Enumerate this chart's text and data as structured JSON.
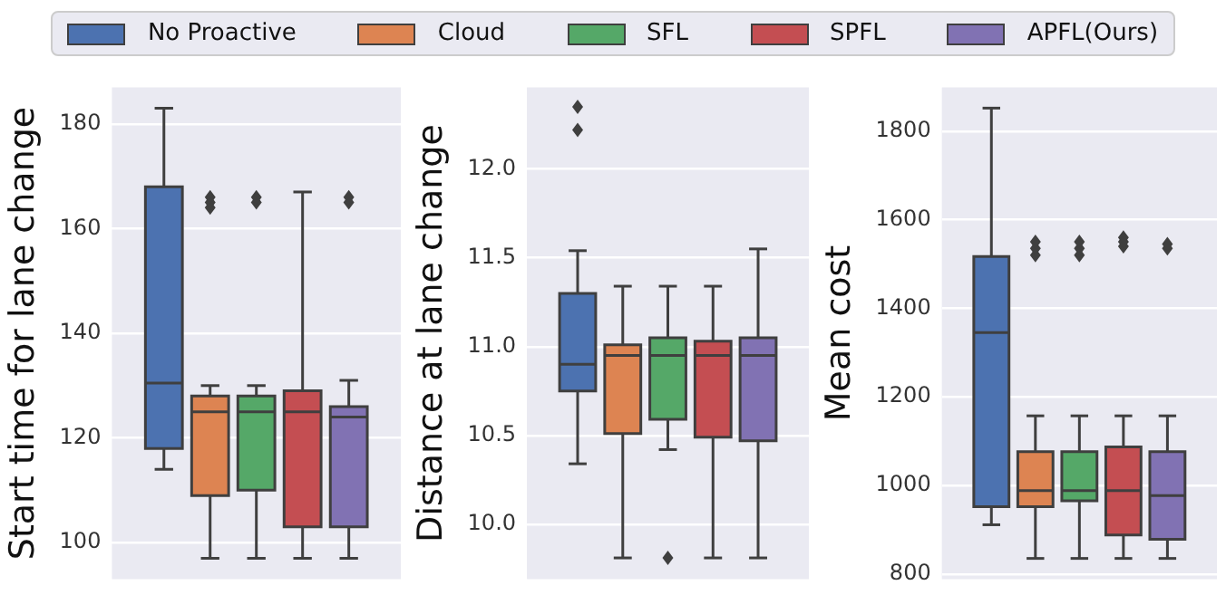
{
  "chart_data": [
    {
      "type": "box",
      "ylabel": "Start time for lane change",
      "categories": [
        null
      ],
      "ylim": [
        93,
        187
      ],
      "yticks": [
        100,
        120,
        140,
        160,
        180
      ],
      "grid": "y",
      "legend": "top",
      "series": [
        {
          "name": "No Proactive",
          "color": "#4c72b0",
          "boxes": [
            {
              "low": 114,
              "q1": 118,
              "median": 130.5,
              "q3": 168,
              "high": 183
            }
          ]
        },
        {
          "name": "Cloud",
          "color": "#dd8452",
          "boxes": [
            {
              "low": 97,
              "q1": 109,
              "median": 125,
              "q3": 128,
              "high": 130,
              "outliers": [
                164,
                165,
                166
              ]
            }
          ]
        },
        {
          "name": "SFL",
          "color": "#55a868",
          "boxes": [
            {
              "low": 97,
              "q1": 110,
              "median": 125,
              "q3": 128,
              "high": 130,
              "outliers": [
                165,
                166
              ]
            }
          ]
        },
        {
          "name": "SPFL",
          "color": "#c44e52",
          "boxes": [
            {
              "low": 97,
              "q1": 103,
              "median": 125,
              "q3": 129,
              "high": 167
            }
          ]
        },
        {
          "name": "APFL(Ours)",
          "color": "#8172b3",
          "boxes": [
            {
              "low": 97,
              "q1": 103,
              "median": 124,
              "q3": 126,
              "high": 131,
              "outliers": [
                165,
                166
              ]
            }
          ]
        }
      ]
    },
    {
      "type": "box",
      "ylabel": "Distance at lane change",
      "categories": [
        null
      ],
      "ylim": [
        9.69,
        12.46
      ],
      "yticks": [
        {
          "value": 10,
          "label": "10.0"
        },
        10.5,
        {
          "value": 11,
          "label": "11.0"
        },
        11.5,
        {
          "value": 12,
          "label": "12.0"
        }
      ],
      "grid": "y",
      "series": [
        {
          "color": "#4c72b0",
          "boxes": [
            {
              "low": 10.34,
              "q1": 10.75,
              "median": 10.9,
              "q3": 11.3,
              "high": 11.54,
              "outliers": [
                12.22,
                12.35
              ]
            }
          ]
        },
        {
          "color": "#dd8452",
          "boxes": [
            {
              "low": 9.81,
              "q1": 10.51,
              "median": 10.95,
              "q3": 11.01,
              "high": 11.34
            }
          ]
        },
        {
          "color": "#55a868",
          "boxes": [
            {
              "low": 10.42,
              "q1": 10.59,
              "median": 10.95,
              "q3": 11.05,
              "high": 11.34,
              "outliers": [
                9.81
              ]
            }
          ]
        },
        {
          "color": "#c44e52",
          "boxes": [
            {
              "low": 9.81,
              "q1": 10.49,
              "median": 10.95,
              "q3": 11.03,
              "high": 11.34
            }
          ]
        },
        {
          "color": "#8172b3",
          "boxes": [
            {
              "low": 9.81,
              "q1": 10.47,
              "median": 10.95,
              "q3": 11.05,
              "high": 11.55
            }
          ]
        }
      ]
    },
    {
      "type": "box",
      "ylabel": "Mean cost",
      "categories": [
        null
      ],
      "ylim": [
        788,
        1899
      ],
      "yticks": [
        800,
        1000,
        1200,
        1400,
        1600,
        1800
      ],
      "grid": "y",
      "series": [
        {
          "color": "#4c72b0",
          "boxes": [
            {
              "low": 911,
              "q1": 952,
              "median": 1345,
              "q3": 1517,
              "high": 1852
            }
          ]
        },
        {
          "color": "#dd8452",
          "boxes": [
            {
              "low": 835,
              "q1": 952,
              "median": 988,
              "q3": 1076,
              "high": 1157,
              "outliers": [
                1520,
                1535,
                1550
              ]
            }
          ]
        },
        {
          "color": "#55a868",
          "boxes": [
            {
              "low": 835,
              "q1": 965,
              "median": 988,
              "q3": 1076,
              "high": 1157,
              "outliers": [
                1520,
                1535,
                1550
              ]
            }
          ]
        },
        {
          "color": "#c44e52",
          "boxes": [
            {
              "low": 835,
              "q1": 888,
              "median": 988,
              "q3": 1087,
              "high": 1157,
              "outliers": [
                1540,
                1550,
                1560
              ]
            }
          ]
        },
        {
          "color": "#8172b3",
          "boxes": [
            {
              "low": 835,
              "q1": 878,
              "median": 977,
              "q3": 1076,
              "high": 1157,
              "outliers": [
                1535,
                1545
              ]
            }
          ]
        }
      ]
    }
  ]
}
